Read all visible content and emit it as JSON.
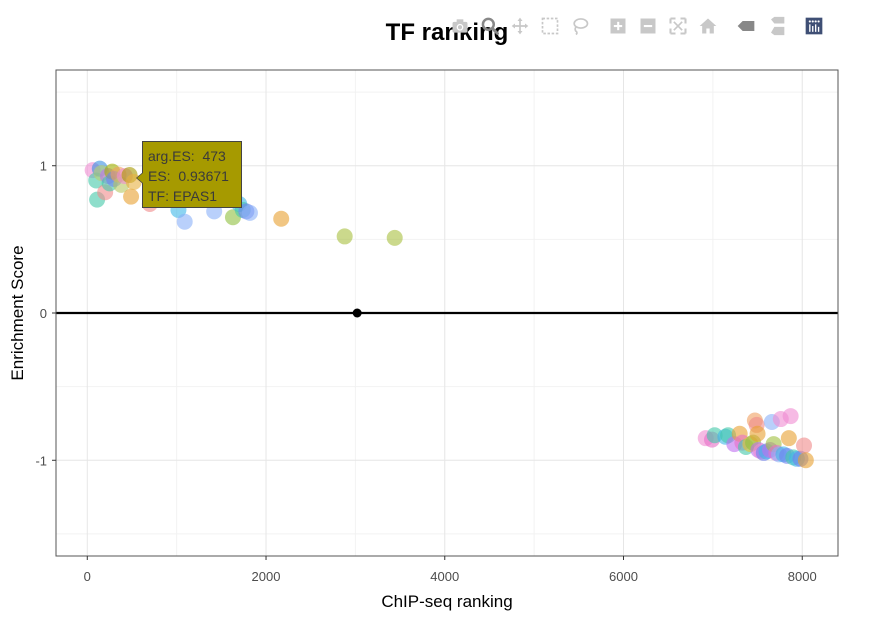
{
  "chart_data": {
    "type": "scatter",
    "title": "TF ranking",
    "xlabel": "ChIP-seq ranking",
    "ylabel": "Enrichment Score",
    "xlim": [
      -350,
      8400
    ],
    "ylim": [
      -1.65,
      1.65
    ],
    "x_ticks": [
      0,
      2000,
      4000,
      6000,
      8000
    ],
    "x_tick_labels": [
      "0",
      "2000",
      "4000",
      "6000",
      "8000"
    ],
    "y_ticks": [
      -1,
      0,
      1
    ],
    "y_tick_labels": [
      "-1",
      "0",
      "1"
    ],
    "grid": true,
    "zero_line": true,
    "marker": {
      "x": 3020,
      "y": 0
    },
    "points": [
      {
        "x": 60,
        "y": 0.97,
        "color": "#f08cd2"
      },
      {
        "x": 100,
        "y": 0.9,
        "color": "#43c8a8"
      },
      {
        "x": 110,
        "y": 0.77,
        "color": "#43c8a8"
      },
      {
        "x": 140,
        "y": 0.98,
        "color": "#3a8fe0"
      },
      {
        "x": 160,
        "y": 0.95,
        "color": "#b8d070"
      },
      {
        "x": 200,
        "y": 0.82,
        "color": "#f08a8a"
      },
      {
        "x": 230,
        "y": 0.93,
        "color": "#c070f0"
      },
      {
        "x": 250,
        "y": 0.88,
        "color": "#43c8a8"
      },
      {
        "x": 280,
        "y": 0.96,
        "color": "#a0b000"
      },
      {
        "x": 300,
        "y": 0.91,
        "color": "#7080f0"
      },
      {
        "x": 350,
        "y": 0.94,
        "color": "#f0a060"
      },
      {
        "x": 380,
        "y": 0.87,
        "color": "#b8c860"
      },
      {
        "x": 420,
        "y": 0.93,
        "color": "#f08cd2"
      },
      {
        "x": 473,
        "y": 0.93671,
        "color": "#a69a00"
      },
      {
        "x": 490,
        "y": 0.79,
        "color": "#e8a030"
      },
      {
        "x": 520,
        "y": 0.89,
        "color": "#e8b040"
      },
      {
        "x": 700,
        "y": 0.74,
        "color": "#f08a8a"
      },
      {
        "x": 1020,
        "y": 0.7,
        "color": "#40b8e8"
      },
      {
        "x": 1090,
        "y": 0.62,
        "color": "#8ab0f8"
      },
      {
        "x": 1420,
        "y": 0.69,
        "color": "#8ab0f8"
      },
      {
        "x": 1630,
        "y": 0.65,
        "color": "#90c040"
      },
      {
        "x": 1700,
        "y": 0.74,
        "color": "#40b8e8"
      },
      {
        "x": 1740,
        "y": 0.7,
        "color": "#43c8a8"
      },
      {
        "x": 1780,
        "y": 0.69,
        "color": "#7080f0"
      },
      {
        "x": 1820,
        "y": 0.68,
        "color": "#8ab0f8"
      },
      {
        "x": 2170,
        "y": 0.64,
        "color": "#e8a030"
      },
      {
        "x": 2880,
        "y": 0.52,
        "color": "#a8c040"
      },
      {
        "x": 3440,
        "y": 0.51,
        "color": "#a8c040"
      },
      {
        "x": 6920,
        "y": -0.85,
        "color": "#f08cd2"
      },
      {
        "x": 6990,
        "y": -0.86,
        "color": "#e870c8"
      },
      {
        "x": 7020,
        "y": -0.83,
        "color": "#43c8a8"
      },
      {
        "x": 7140,
        "y": -0.84,
        "color": "#40b8e8"
      },
      {
        "x": 7170,
        "y": -0.83,
        "color": "#43c8a8"
      },
      {
        "x": 7240,
        "y": -0.89,
        "color": "#c070f0"
      },
      {
        "x": 7300,
        "y": -0.82,
        "color": "#e8a030"
      },
      {
        "x": 7330,
        "y": -0.88,
        "color": "#e870c8"
      },
      {
        "x": 7370,
        "y": -0.91,
        "color": "#43c8a8"
      },
      {
        "x": 7420,
        "y": -0.89,
        "color": "#e8c030"
      },
      {
        "x": 7450,
        "y": -0.88,
        "color": "#90c040"
      },
      {
        "x": 7470,
        "y": -0.73,
        "color": "#f0a060"
      },
      {
        "x": 7490,
        "y": -0.76,
        "color": "#f08a8a"
      },
      {
        "x": 7500,
        "y": -0.82,
        "color": "#e8a030"
      },
      {
        "x": 7510,
        "y": -0.93,
        "color": "#c070f0"
      },
      {
        "x": 7540,
        "y": -0.94,
        "color": "#f08cd2"
      },
      {
        "x": 7570,
        "y": -0.95,
        "color": "#7080f0"
      },
      {
        "x": 7600,
        "y": -0.94,
        "color": "#40b8e8"
      },
      {
        "x": 7640,
        "y": -0.93,
        "color": "#c070f0"
      },
      {
        "x": 7660,
        "y": -0.74,
        "color": "#8ab0f8"
      },
      {
        "x": 7680,
        "y": -0.89,
        "color": "#a0c040"
      },
      {
        "x": 7710,
        "y": -0.95,
        "color": "#e870c8"
      },
      {
        "x": 7740,
        "y": -0.96,
        "color": "#8ab0f8"
      },
      {
        "x": 7760,
        "y": -0.72,
        "color": "#f08cd2"
      },
      {
        "x": 7790,
        "y": -0.96,
        "color": "#40b8e8"
      },
      {
        "x": 7830,
        "y": -0.97,
        "color": "#7080f0"
      },
      {
        "x": 7850,
        "y": -0.85,
        "color": "#e8a030"
      },
      {
        "x": 7870,
        "y": -0.7,
        "color": "#f08cd2"
      },
      {
        "x": 7900,
        "y": -0.98,
        "color": "#43c8a8"
      },
      {
        "x": 7940,
        "y": -0.99,
        "color": "#40b8e8"
      },
      {
        "x": 7980,
        "y": -0.99,
        "color": "#7080f0"
      },
      {
        "x": 8020,
        "y": -0.9,
        "color": "#f08a8a"
      },
      {
        "x": 8040,
        "y": -1.0,
        "color": "#e8a030"
      }
    ],
    "tooltip": {
      "anchor_x": 473,
      "anchor_y": 0.93671,
      "lines": [
        "arg.ES:  473",
        "ES:  0.93671",
        "TF: EPAS1"
      ],
      "background": "#a69a00"
    }
  },
  "modebar": {
    "buttons": [
      {
        "name": "camera-icon"
      },
      {
        "name": "zoom-icon"
      },
      {
        "name": "pan-icon"
      },
      {
        "name": "box-select-icon"
      },
      {
        "name": "lasso-select-icon"
      },
      {
        "name": "zoom-in-icon"
      },
      {
        "name": "zoom-out-icon"
      },
      {
        "name": "autoscale-icon"
      },
      {
        "name": "reset-axes-icon"
      },
      {
        "name": "spike-lines-icon"
      },
      {
        "name": "compare-hover-icon"
      },
      {
        "name": "plotly-logo-icon"
      }
    ],
    "icon_color": "#c8c8c8",
    "active_color": "#888888",
    "logo_color": "#3f4f75"
  }
}
